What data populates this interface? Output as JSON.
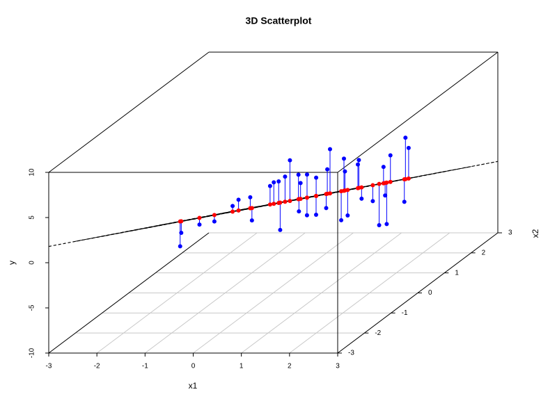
{
  "chart_data": {
    "type": "scatter3d",
    "title": "3D Scatterplot",
    "x1label": "x1",
    "ylabel": "y",
    "x2label": "x2",
    "x1lim": [
      -3,
      3
    ],
    "x2lim": [
      -3,
      3
    ],
    "ylim": [
      -10,
      10
    ],
    "x1ticks": [
      -3,
      -2,
      -1,
      0,
      1,
      2,
      3
    ],
    "x2ticks": [
      -3,
      -2,
      -1,
      0,
      1,
      2,
      3
    ],
    "yticks": [
      -10,
      -5,
      0,
      5,
      10
    ],
    "grid": true,
    "color": "#0000ff",
    "fit_color": "#ff0000",
    "plane": {
      "intercept": -0.15,
      "x1": 1.0,
      "x2": -1.65
    },
    "x1": [
      -2.1,
      -1.8,
      -1.5,
      -1.2,
      -0.9,
      -0.3,
      -0.5,
      -0.1,
      0.1,
      0.2,
      0.3,
      0.4,
      0.5,
      0.6,
      0.7,
      0.8,
      0.9,
      1.0,
      1.1,
      1.2,
      1.3,
      1.4,
      1.5,
      1.6,
      1.7,
      1.8,
      1.9,
      2.0,
      2.1,
      2.2,
      2.3,
      2.4,
      2.5,
      2.6,
      2.7,
      2.8,
      -0.7,
      0.0,
      0.9,
      1.5
    ],
    "x2": [
      0.3,
      -0.2,
      0.5,
      -0.6,
      0.1,
      0.8,
      -0.4,
      0.2,
      -0.3,
      0.6,
      -0.1,
      0.3,
      -0.7,
      0.9,
      0.0,
      -0.5,
      0.4,
      -0.2,
      0.7,
      -0.9,
      0.2,
      -0.4,
      0.5,
      -0.1,
      0.9,
      -0.6,
      0.3,
      -0.3,
      0.6,
      -0.8,
      0.1,
      -0.2,
      0.4,
      -0.5,
      0.2,
      -0.1,
      0.4,
      -0.8,
      -1.0,
      -1.1
    ],
    "y": [
      -5.5,
      -2.9,
      -3.2,
      -1.1,
      -0.6,
      -4.8,
      1.2,
      1.8,
      2.5,
      -2.3,
      3.1,
      1.5,
      3.9,
      -2.6,
      -1.4,
      4.2,
      2.8,
      -0.9,
      1.9,
      5.1,
      -2.4,
      6.8,
      3.6,
      -1.2,
      -4.5,
      6.2,
      -0.5,
      1.1,
      3.9,
      6.0,
      -2.6,
      4.4,
      -0.8,
      1.9,
      5.6,
      7.4,
      -0.3,
      -0.2,
      6.9,
      5.2
    ],
    "fitted": [
      -2.75,
      -1.62,
      -2.48,
      -0.36,
      -1.22,
      -1.77,
      0.01,
      -0.58,
      0.45,
      -0.94,
      0.32,
      -0.25,
      1.51,
      -1.04,
      0.55,
      1.48,
      0.09,
      1.18,
      -0.21,
      2.54,
      0.82,
      1.91,
      0.53,
      1.62,
      0.07,
      2.64,
      1.26,
      2.35,
      0.96,
      3.37,
      1.99,
      2.58,
      1.69,
      3.28,
      2.22,
      2.82,
      -1.51,
      1.17,
      2.4,
      3.17
    ]
  }
}
